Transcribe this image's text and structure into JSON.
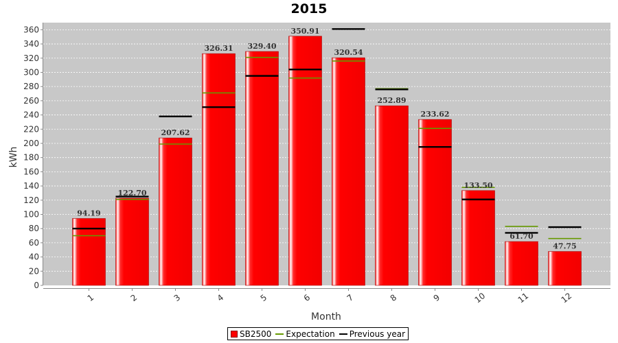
{
  "chart_data": {
    "type": "bar",
    "title": "2015",
    "xlabel": "Month",
    "ylabel": "kWh",
    "categories": [
      "1",
      "2",
      "3",
      "4",
      "5",
      "6",
      "7",
      "8",
      "9",
      "10",
      "11",
      "12"
    ],
    "series": [
      {
        "name": "SB2500",
        "type": "bar",
        "color": "#ff0000",
        "values": [
          94.19,
          122.7,
          207.62,
          326.31,
          329.4,
          350.91,
          320.54,
          252.89,
          233.62,
          133.5,
          61.7,
          47.75
        ]
      },
      {
        "name": "Expectation",
        "type": "marker-line",
        "color": "#669900",
        "values": [
          70,
          121,
          199,
          271,
          321,
          292,
          316,
          277,
          221,
          138,
          83,
          66
        ]
      },
      {
        "name": "Previous year",
        "type": "marker-line",
        "color": "#000000",
        "values": [
          80,
          125,
          238,
          251,
          295,
          304,
          361,
          276,
          195,
          121,
          74,
          82
        ]
      }
    ],
    "data_labels": [
      "94.19",
      "122.70",
      "207.62",
      "326.31",
      "329.40",
      "350.91",
      "320.54",
      "252.89",
      "233.62",
      "133.50",
      "61.70",
      "47.75"
    ],
    "y_ticks": [
      "0",
      "20",
      "40",
      "60",
      "80",
      "100",
      "120",
      "140",
      "160",
      "180",
      "200",
      "220",
      "240",
      "260",
      "280",
      "300",
      "320",
      "340",
      "360"
    ],
    "ylim": [
      0,
      370
    ],
    "grid": true,
    "legend_position": "bottom",
    "colors": {
      "plot_background": "#c8c8c8",
      "grid": "#ffffff"
    }
  }
}
